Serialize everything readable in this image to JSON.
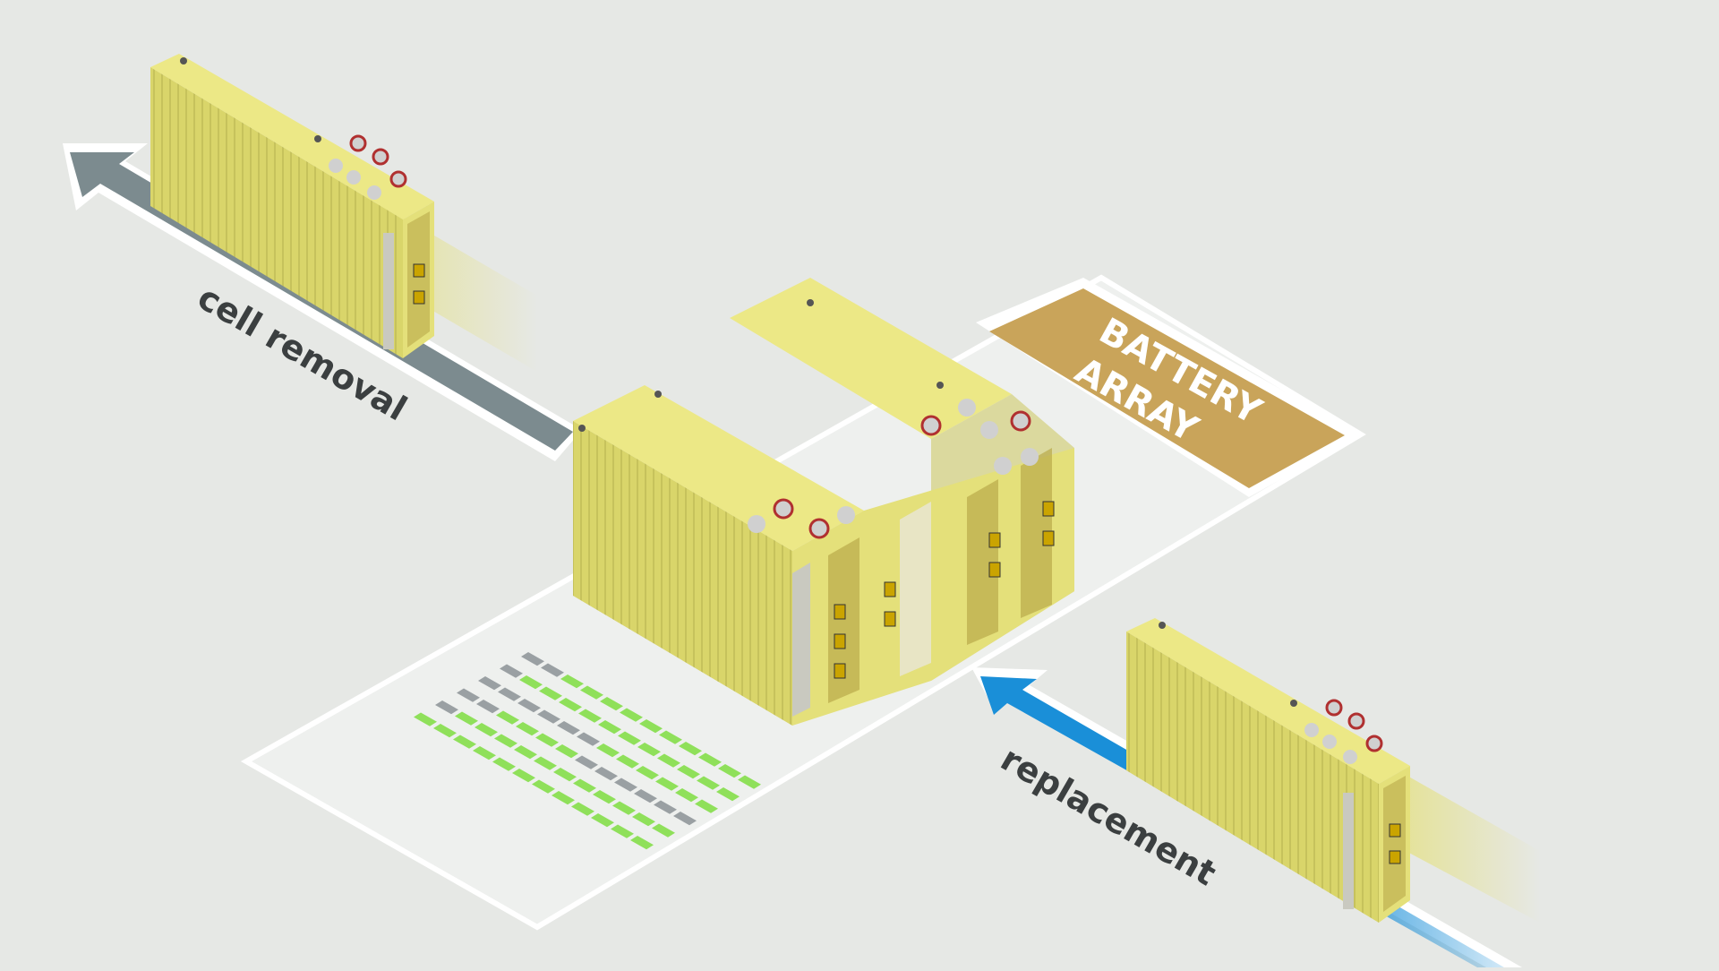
{
  "labels": {
    "cell_removal": "cell removal",
    "replacement": "replacement",
    "battery_array_line1": "BATTERY",
    "battery_array_line2": "ARRAY"
  },
  "colors": {
    "background": "#e6e8e5",
    "platform": "#eef0ee",
    "platform_edge": "#ffffff",
    "cell_top": "#ece886",
    "cell_left": "#d9d56a",
    "cell_right": "#e4e07a",
    "removal_arrow": "#7c8b8f",
    "replacement_arrow": "#1a8fd8",
    "battery_array_tag": "#c9a45a",
    "health_green": "#8fe05a",
    "health_gray": "#9aa0a3"
  },
  "cell_health_grid": {
    "rows": [
      [
        "gray",
        "gray",
        "green",
        "green",
        "green",
        "green",
        "green",
        "green",
        "green",
        "green",
        "green",
        "green"
      ],
      [
        "gray",
        "green",
        "green",
        "green",
        "green",
        "green",
        "green",
        "green",
        "green",
        "green",
        "green",
        "green"
      ],
      [
        "gray",
        "gray",
        "gray",
        "gray",
        "gray",
        "gray",
        "green",
        "green",
        "green",
        "green",
        "green",
        "green"
      ],
      [
        "gray",
        "gray",
        "green",
        "green",
        "green",
        "green",
        "gray",
        "gray",
        "gray",
        "gray",
        "gray",
        "gray"
      ],
      [
        "gray",
        "green",
        "green",
        "green",
        "green",
        "green",
        "green",
        "green",
        "green",
        "green",
        "green",
        "green"
      ],
      [
        "green",
        "green",
        "green",
        "green",
        "green",
        "green",
        "green",
        "green",
        "green",
        "green",
        "green",
        "green"
      ]
    ]
  }
}
